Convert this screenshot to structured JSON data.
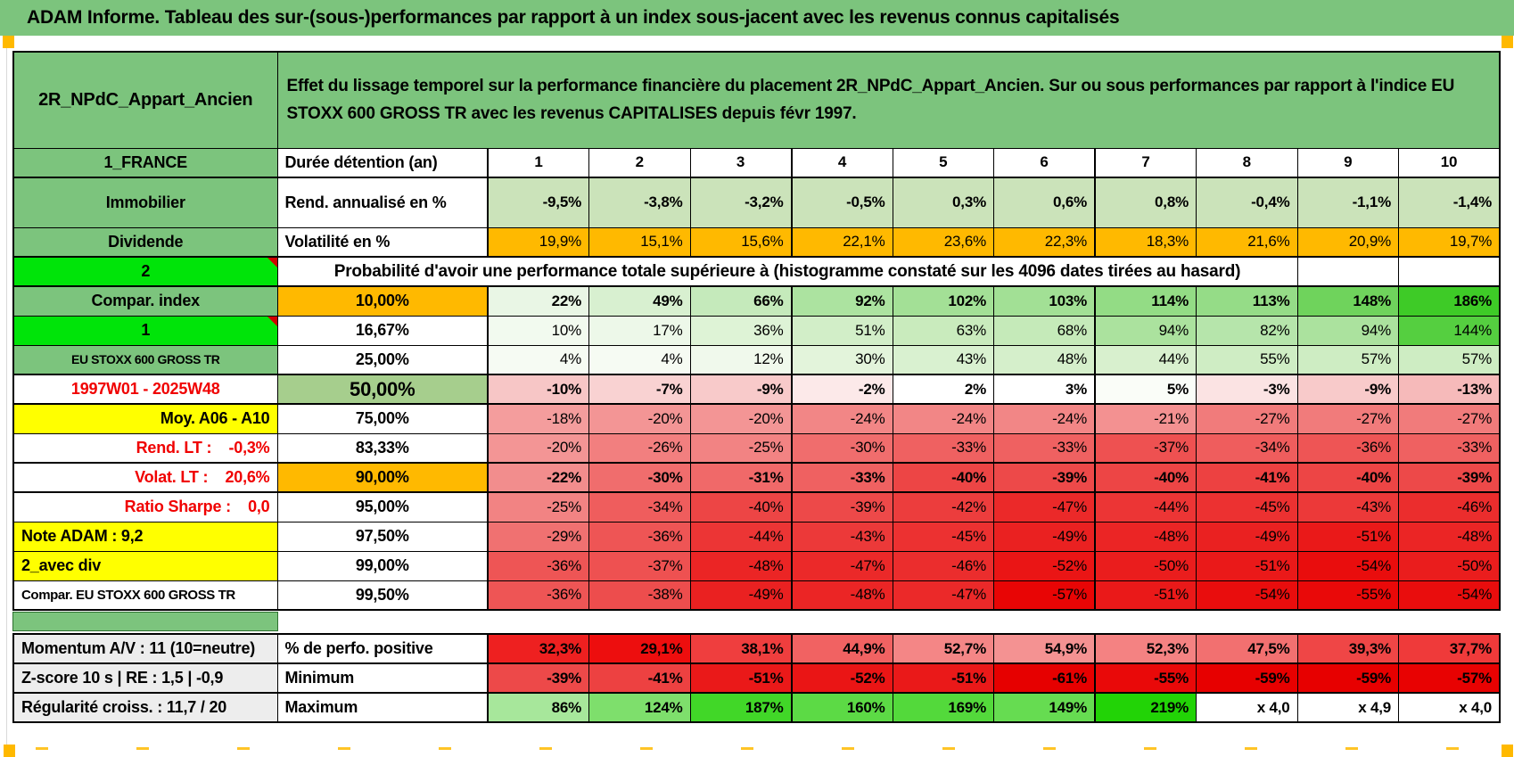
{
  "app": {
    "banner": "ADAM Informe. Tableau des sur-(sous-)performances par rapport à un index sous-jacent avec les revenus connus capitalisés"
  },
  "header": {
    "asset": "2R_NPdC_Appart_Ancien",
    "description": "Effet du lissage temporel sur la performance financière du placement 2R_NPdC_Appart_Ancien. Sur ou sous performances par rapport à l'indice EU STOXX 600 GROSS TR avec les revenus CAPITALISES depuis févr 1997."
  },
  "colors": {
    "sheet_green": "#7CC47D",
    "bright_green": "#00E409",
    "orange": "#FFB900",
    "yellow": "#FFFF00",
    "median_green": "#A6CE8D",
    "light_green_row": "#CBE3BA",
    "gray_label": "#EDEDED",
    "red_text": "#F00000",
    "marker_red": "#D00000"
  },
  "main": {
    "rows": [
      {
        "label": "1_FRANCE",
        "labelStyle": "green",
        "metric": "Durée détention (an)",
        "metricStyle": "left",
        "kind": "values",
        "bold": true,
        "align": "center",
        "bg": "#FFFFFF",
        "values": [
          "1",
          "2",
          "3",
          "4",
          "5",
          "6",
          "7",
          "8",
          "9",
          "10"
        ]
      },
      {
        "label": "Immobilier",
        "labelStyle": "green",
        "metric": "Rend. annualisé en %",
        "metricStyle": "left",
        "kind": "values",
        "bold": true,
        "bg": "#CBE3BA",
        "values": [
          "-9,5%",
          "-3,8%",
          "-3,2%",
          "-0,5%",
          "0,3%",
          "0,6%",
          "0,8%",
          "-0,4%",
          "-1,1%",
          "-1,4%"
        ]
      },
      {
        "label": "Dividende",
        "labelStyle": "green",
        "metric": "Volatilité en %",
        "metricStyle": "left",
        "kind": "values",
        "bold": false,
        "bg": "#FFB900",
        "values": [
          "19,9%",
          "15,1%",
          "15,6%",
          "22,1%",
          "23,6%",
          "22,3%",
          "18,3%",
          "21,6%",
          "20,9%",
          "19,7%"
        ]
      },
      {
        "label": "2",
        "labelStyle": "bright",
        "kind": "merged",
        "mergedText": "Probabilité d'avoir une performance totale supérieure à (histogramme constaté sur les 4096 dates tirées au hasard)"
      },
      {
        "label": "Compar. index",
        "labelStyle": "green",
        "metric": "10,00%",
        "metricStyle": "orange",
        "kind": "values",
        "bold": true,
        "bg": [
          "#E9F6E5",
          "#D8F0D0",
          "#C5EABB",
          "#ACE3A0",
          "#A3E096",
          "#A2E095",
          "#93DC85",
          "#95DC87",
          "#6FD35C",
          "#3ECB27"
        ],
        "values": [
          "22%",
          "49%",
          "66%",
          "92%",
          "102%",
          "103%",
          "114%",
          "113%",
          "148%",
          "186%"
        ]
      },
      {
        "label": "1",
        "labelStyle": "bright",
        "metric": "16,67%",
        "metricStyle": "center",
        "kind": "values",
        "bold": false,
        "bg": [
          "#F2FAEF",
          "#EDF8E9",
          "#DEF3D6",
          "#D2EEC8",
          "#C9EBBD",
          "#C5EAB9",
          "#ABE29E",
          "#B6E5AB",
          "#ABE29E",
          "#55CF40"
        ],
        "values": [
          "10%",
          "17%",
          "36%",
          "51%",
          "63%",
          "68%",
          "94%",
          "82%",
          "94%",
          "144%"
        ]
      },
      {
        "label": "EU STOXX 600 GROSS TR",
        "labelStyle": "green-sm",
        "metric": "25,00%",
        "metricStyle": "center",
        "kind": "values",
        "bold": false,
        "bg": [
          "#F6FBF3",
          "#F6FBF3",
          "#F0F9EC",
          "#E3F4DB",
          "#D9F1D0",
          "#D5EFCB",
          "#D8F0CE",
          "#CFEDC4",
          "#CEEDC3",
          "#CEEDC3"
        ],
        "values": [
          "4%",
          "4%",
          "12%",
          "30%",
          "43%",
          "48%",
          "44%",
          "55%",
          "57%",
          "57%"
        ]
      },
      {
        "label": "1997W01 - 2025W48",
        "labelStyle": "red-center",
        "metric": "50,00%",
        "metricStyle": "green50",
        "kind": "values",
        "bold": true,
        "bg": [
          "#F7C6C6",
          "#F9D2D2",
          "#F8CACA",
          "#FCE9E9",
          "#FFFFFF",
          "#FFFFFF",
          "#FAFDF8",
          "#FBE3E3",
          "#F8CACA",
          "#F6BABA"
        ],
        "values": [
          "-10%",
          "-7%",
          "-9%",
          "-2%",
          "2%",
          "3%",
          "5%",
          "-3%",
          "-9%",
          "-13%"
        ]
      },
      {
        "label": "Moy. A06 - A10",
        "labelStyle": "yellow-right",
        "metric": "75,00%",
        "metricStyle": "center",
        "kind": "values",
        "bold": false,
        "bg": [
          "#F49D9D",
          "#F39595",
          "#F39595",
          "#F28686",
          "#F28686",
          "#F28686",
          "#F39191",
          "#F17B7B",
          "#F17B7B",
          "#F17B7B"
        ],
        "values": [
          "-18%",
          "-20%",
          "-20%",
          "-24%",
          "-24%",
          "-24%",
          "-21%",
          "-27%",
          "-27%",
          "-27%"
        ]
      },
      {
        "label": "Rend. LT :    -0,3%",
        "labelStyle": "red-right",
        "metric": "83,33%",
        "metricStyle": "center",
        "kind": "values",
        "bold": false,
        "bg": [
          "#F39595",
          "#F27F7F",
          "#F28383",
          "#F06D6D",
          "#EF6161",
          "#EF6161",
          "#EE5151",
          "#EF5D5D",
          "#EE5555",
          "#EF6161"
        ],
        "values": [
          "-20%",
          "-26%",
          "-25%",
          "-30%",
          "-33%",
          "-33%",
          "-37%",
          "-34%",
          "-36%",
          "-33%"
        ]
      },
      {
        "label": "Volat. LT :    20,6%",
        "labelStyle": "red-right",
        "metric": "90,00%",
        "metricStyle": "orange",
        "kind": "values",
        "bold": true,
        "bg": [
          "#F28D8D",
          "#F06D6D",
          "#F06969",
          "#EF6161",
          "#ED4545",
          "#ED4949",
          "#ED4545",
          "#ED4141",
          "#ED4545",
          "#ED4949"
        ],
        "values": [
          "-22%",
          "-30%",
          "-31%",
          "-33%",
          "-40%",
          "-39%",
          "-40%",
          "-41%",
          "-40%",
          "-39%"
        ]
      },
      {
        "label": "Ratio Sharpe :    0,0",
        "labelStyle": "red-right",
        "metric": "95,00%",
        "metricStyle": "center",
        "kind": "values",
        "bold": false,
        "bg": [
          "#F28383",
          "#EF5D5D",
          "#ED4545",
          "#ED4949",
          "#EC3D3D",
          "#EB2929",
          "#EC3535",
          "#EC3131",
          "#EC3939",
          "#EB2D2D"
        ],
        "values": [
          "-25%",
          "-34%",
          "-40%",
          "-39%",
          "-42%",
          "-47%",
          "-44%",
          "-45%",
          "-43%",
          "-46%"
        ]
      },
      {
        "label": "Note ADAM : 9,2",
        "labelStyle": "yellow-left",
        "metric": "97,50%",
        "metricStyle": "center",
        "kind": "values",
        "bold": false,
        "bg": [
          "#F07171",
          "#EE5555",
          "#EC3535",
          "#EC3939",
          "#EC3131",
          "#EA2121",
          "#EB2525",
          "#EA2121",
          "#EA1919",
          "#EB2525"
        ],
        "values": [
          "-29%",
          "-36%",
          "-44%",
          "-43%",
          "-45%",
          "-49%",
          "-48%",
          "-49%",
          "-51%",
          "-48%"
        ]
      },
      {
        "label": "2_avec div",
        "labelStyle": "yellow-left",
        "metric": "99,00%",
        "metricStyle": "center",
        "kind": "values",
        "bold": false,
        "bg": [
          "#EE5555",
          "#EE5151",
          "#EB2525",
          "#EB2929",
          "#EB2D2D",
          "#EA1515",
          "#EA1D1D",
          "#EA1919",
          "#E90D0D",
          "#EA1D1D"
        ],
        "values": [
          "-36%",
          "-37%",
          "-48%",
          "-47%",
          "-46%",
          "-52%",
          "-50%",
          "-51%",
          "-54%",
          "-50%"
        ]
      },
      {
        "label": "Compar. EU STOXX 600 GROSS TR",
        "labelStyle": "white-left",
        "metric": "99,50%",
        "metricStyle": "center",
        "kind": "values",
        "bold": false,
        "bg": [
          "#EE5555",
          "#ED4D4D",
          "#EA2121",
          "#EB2525",
          "#EB2929",
          "#E80505",
          "#EA1919",
          "#E90D0D",
          "#E90909",
          "#E90D0D"
        ],
        "values": [
          "-36%",
          "-38%",
          "-49%",
          "-48%",
          "-47%",
          "-57%",
          "-51%",
          "-54%",
          "-55%",
          "-54%"
        ]
      }
    ]
  },
  "footer": {
    "rows": [
      {
        "label": "Momentum A/V : 11 (10=neutre)",
        "labelStyle": "gray",
        "metric": "% de perfo. positive",
        "metricStyle": "left",
        "kind": "values",
        "bold": true,
        "bg": [
          "#EE2020",
          "#ED0E0E",
          "#EF3E3E",
          "#F16262",
          "#F48686",
          "#F49292",
          "#F48282",
          "#F27070",
          "#EF4646",
          "#EF3A3A"
        ],
        "values": [
          "32,3%",
          "29,1%",
          "38,1%",
          "44,9%",
          "52,7%",
          "54,9%",
          "52,3%",
          "47,5%",
          "39,3%",
          "37,7%"
        ]
      },
      {
        "label": "Z-score 10 s | RE : 1,5 | -0,9",
        "labelStyle": "gray",
        "metric": "Minimum",
        "metricStyle": "left",
        "kind": "values",
        "bold": true,
        "bg": [
          "#ED4949",
          "#ED4141",
          "#EA1919",
          "#EA1515",
          "#EA1919",
          "#E60000",
          "#E90909",
          "#E70000",
          "#E70000",
          "#E80202"
        ],
        "values": [
          "-39%",
          "-41%",
          "-51%",
          "-52%",
          "-51%",
          "-61%",
          "-55%",
          "-59%",
          "-59%",
          "-57%"
        ]
      },
      {
        "label": "Régularité croiss. : 11,7 / 20",
        "labelStyle": "gray",
        "metric": "Maximum",
        "metricStyle": "left",
        "kind": "values",
        "bold": true,
        "bg": [
          "#A7E79B",
          "#7EDF6C",
          "#41D728",
          "#5CDA45",
          "#53D93B",
          "#66DC51",
          "#22D306",
          "#FFFFFF",
          "#FFFFFF",
          "#FFFFFF"
        ],
        "values": [
          "86%",
          "124%",
          "187%",
          "160%",
          "169%",
          "149%",
          "219%",
          "x 4,0",
          "x 4,9",
          "x 4,0"
        ]
      }
    ]
  }
}
